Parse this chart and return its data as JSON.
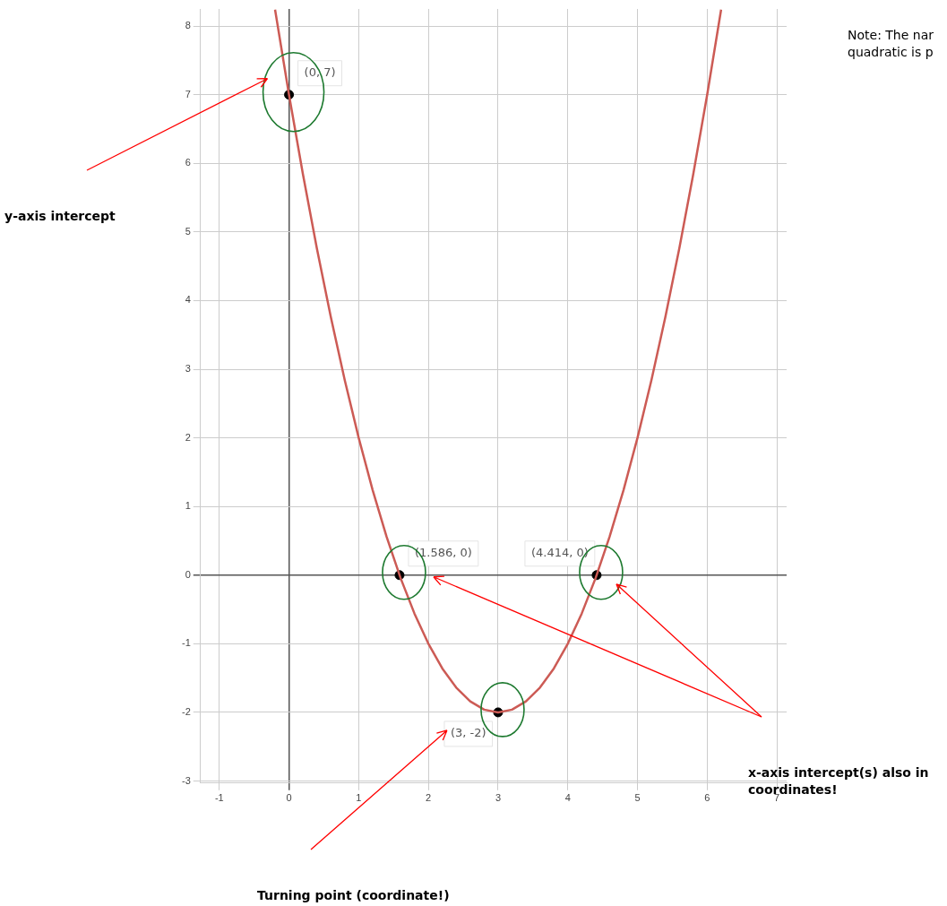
{
  "chart_data": {
    "type": "line",
    "xlim": [
      -1.27,
      7.14
    ],
    "ylim": [
      -3.03,
      8.25
    ],
    "xticks": [
      -1,
      0,
      1,
      2,
      3,
      4,
      5,
      6,
      7
    ],
    "yticks": [
      -3,
      -2,
      -1,
      0,
      1,
      2,
      3,
      4,
      5,
      6,
      7,
      8
    ],
    "grid": true,
    "legend": false,
    "line_style": "solid",
    "series": [
      {
        "type": "line",
        "color": "#cc5b55",
        "marker": "none",
        "x": [
          -0.2,
          0,
          0.2,
          0.4,
          0.6,
          0.8,
          1,
          1.2,
          1.4,
          1.6,
          1.8,
          2,
          2.2,
          2.4,
          2.6,
          2.8,
          3,
          3.2,
          3.4,
          3.6,
          3.8,
          4,
          4.2,
          4.4,
          4.6,
          4.8,
          5,
          5.2,
          5.4,
          5.6,
          5.8,
          6,
          6.2
        ],
        "values": [
          8.24,
          7,
          5.84,
          4.76,
          3.76,
          2.84,
          2,
          1.24,
          0.56,
          -0.04,
          -0.56,
          -1,
          -1.36,
          -1.64,
          -1.84,
          -1.96,
          -2,
          -1.96,
          -1.84,
          -1.64,
          -1.36,
          -1,
          -0.56,
          -0.04,
          0.56,
          1.24,
          2,
          2.84,
          3.76,
          4.76,
          5.84,
          7,
          8.24
        ]
      },
      {
        "type": "scatter",
        "color": "#000000",
        "marker": "circle",
        "x": [
          0,
          1.586,
          4.414,
          3
        ],
        "values": [
          7,
          0,
          0,
          -2
        ],
        "value_labels": [
          "(0, 7)",
          "(1.586, 0)",
          "(4.414, 0)",
          "(3, -2)"
        ]
      }
    ],
    "annotations": [
      "y-axis intercept",
      "x-axis intercept(s) also in\ncoordinates!",
      "Turning point (coordinate!)",
      "Note: The nar\nquadratic is p"
    ]
  }
}
